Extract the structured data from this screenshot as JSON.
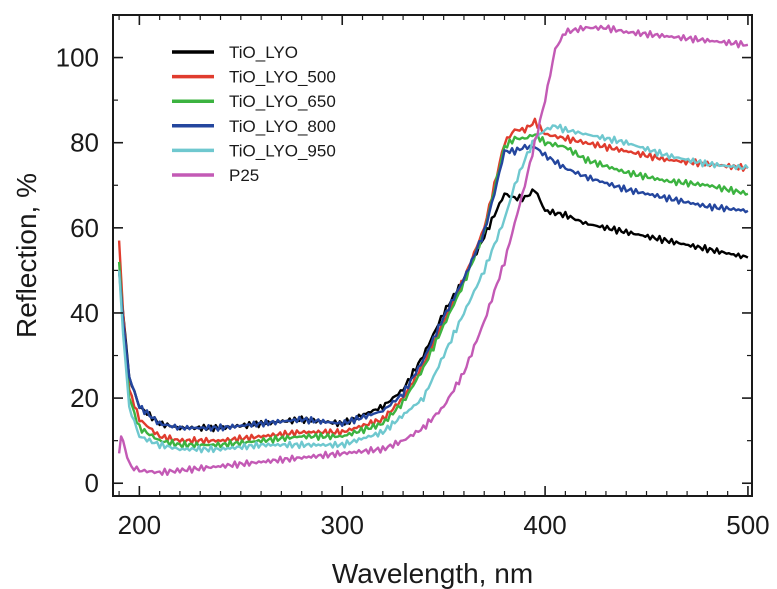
{
  "chart_data": {
    "type": "line",
    "title": "",
    "xlabel": "Wavelength, nm",
    "ylabel": "Reflection, %",
    "xlim": [
      187,
      502
    ],
    "ylim": [
      -3,
      110
    ],
    "x_ticks": [
      200,
      300,
      400,
      500
    ],
    "y_ticks": [
      0,
      20,
      40,
      60,
      80,
      100
    ],
    "grid": false,
    "legend_position": "top-left",
    "series": [
      {
        "name": "TiO_LYO",
        "color": "#000000",
        "x": [
          190,
          192,
          195,
          200,
          210,
          220,
          240,
          260,
          280,
          300,
          320,
          330,
          340,
          350,
          360,
          370,
          375,
          380,
          385,
          390,
          395,
          400,
          410,
          420,
          440,
          460,
          480,
          500
        ],
        "y": [
          50,
          40,
          25,
          18,
          14,
          13,
          13,
          14,
          15,
          14,
          18,
          22,
          30,
          40,
          48,
          58,
          63,
          68,
          67,
          67,
          69,
          64,
          63,
          61,
          59,
          57,
          55,
          53
        ]
      },
      {
        "name": "TiO_LYO_500",
        "color": "#e03c2e",
        "x": [
          190,
          192,
          195,
          200,
          210,
          220,
          240,
          260,
          280,
          300,
          320,
          330,
          340,
          350,
          360,
          370,
          375,
          380,
          385,
          390,
          395,
          400,
          410,
          420,
          440,
          460,
          480,
          500
        ],
        "y": [
          57,
          40,
          22,
          15,
          11,
          10,
          10,
          11,
          12,
          12,
          15,
          20,
          28,
          38,
          48,
          60,
          70,
          80,
          83,
          83,
          85,
          82,
          81,
          80,
          78,
          76,
          75,
          74
        ]
      },
      {
        "name": "TiO_LYO_650",
        "color": "#3cb340",
        "x": [
          190,
          192,
          195,
          200,
          210,
          220,
          240,
          260,
          280,
          300,
          320,
          330,
          340,
          350,
          360,
          370,
          375,
          380,
          385,
          390,
          395,
          400,
          410,
          420,
          440,
          460,
          480,
          500
        ],
        "y": [
          52,
          38,
          20,
          13,
          10,
          9,
          9,
          10,
          11,
          11,
          14,
          19,
          27,
          37,
          47,
          59,
          69,
          79,
          81,
          81,
          82,
          80,
          79,
          76,
          73,
          71,
          70,
          68
        ]
      },
      {
        "name": "TiO_LYO_800",
        "color": "#24469e",
        "x": [
          190,
          192,
          195,
          200,
          210,
          220,
          240,
          260,
          280,
          300,
          320,
          330,
          340,
          350,
          360,
          370,
          375,
          380,
          385,
          390,
          395,
          400,
          410,
          420,
          440,
          460,
          480,
          500
        ],
        "y": [
          50,
          38,
          25,
          18,
          14,
          13,
          13,
          14,
          15,
          14,
          17,
          21,
          29,
          39,
          48,
          59,
          68,
          78,
          78,
          79,
          79,
          77,
          74,
          72,
          69,
          67,
          65,
          64
        ]
      },
      {
        "name": "TiO_LYO_950",
        "color": "#6fc8cf",
        "x": [
          190,
          192,
          195,
          200,
          210,
          220,
          240,
          260,
          280,
          300,
          320,
          340,
          350,
          360,
          370,
          380,
          385,
          390,
          395,
          400,
          405,
          410,
          420,
          440,
          460,
          480,
          500
        ],
        "y": [
          50,
          35,
          18,
          11,
          9,
          8,
          8,
          9,
          9,
          9,
          12,
          20,
          30,
          40,
          50,
          62,
          70,
          76,
          81,
          83,
          84,
          83,
          82,
          80,
          77,
          75,
          74
        ]
      },
      {
        "name": "P25",
        "color": "#c35ab5",
        "x": [
          190,
          191,
          192,
          194,
          196,
          200,
          210,
          220,
          240,
          260,
          280,
          300,
          320,
          330,
          340,
          350,
          360,
          370,
          380,
          390,
          395,
          400,
          405,
          410,
          420,
          430,
          440,
          460,
          480,
          500
        ],
        "y": [
          7,
          11,
          10,
          6,
          4,
          3,
          2.5,
          3,
          4,
          5,
          6,
          7,
          8,
          10,
          13,
          18,
          26,
          38,
          52,
          70,
          80,
          90,
          102,
          106,
          107,
          107,
          106,
          105,
          104,
          103
        ]
      }
    ]
  }
}
